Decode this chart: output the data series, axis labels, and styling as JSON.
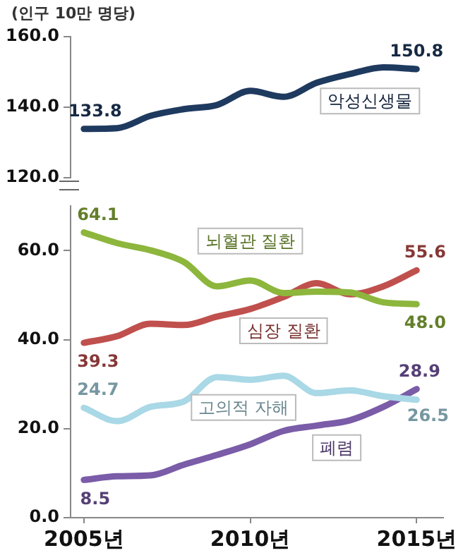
{
  "chart_data": [
    {
      "type": "line",
      "ylabel": "(인구 10만 명당)",
      "categories": [
        null,
        null,
        null,
        null,
        null,
        null,
        null,
        null,
        null,
        null,
        null
      ],
      "ylim": [
        120,
        160
      ],
      "yticks": [
        {
          "value": 120,
          "label": "120.0"
        },
        {
          "value": 140,
          "label": "140.0"
        },
        {
          "value": 160,
          "label": "160.0"
        }
      ],
      "tick_labels": "y",
      "grid": false,
      "marker": "none",
      "series": [
        {
          "name": "악성신생물",
          "color": "#1f3a5f",
          "values": [
            133.8,
            134.0,
            137.5,
            139.4,
            140.6,
            144.6,
            142.9,
            146.9,
            149.4,
            151.3,
            150.8
          ],
          "value_labels": [
            "133.8",
            null,
            null,
            null,
            null,
            null,
            null,
            null,
            null,
            null,
            "150.8"
          ]
        }
      ]
    },
    {
      "type": "line",
      "x": [
        2005,
        2006,
        2007,
        2008,
        2009,
        2010,
        2011,
        2012,
        2013,
        2014,
        2015
      ],
      "xlim": [
        2004.6,
        2015.8
      ],
      "xticks": [
        {
          "value": 2005,
          "label": "2005년"
        },
        {
          "value": 2010,
          "label": "2010년"
        },
        {
          "value": 2015,
          "label": "2015년"
        }
      ],
      "ylim": [
        0,
        70
      ],
      "yticks": [
        {
          "value": 0,
          "label": "0.0"
        },
        {
          "value": 20,
          "label": "20.0"
        },
        {
          "value": 40,
          "label": "40.0"
        },
        {
          "value": 60,
          "label": "60.0"
        }
      ],
      "grid": false,
      "marker": "none",
      "series": [
        {
          "name": "뇌혈관 질환",
          "color": "#8db63c",
          "values": [
            64.1,
            61.7,
            60.1,
            57.5,
            52.0,
            53.3,
            50.5,
            50.8,
            50.6,
            48.4,
            48.0
          ],
          "value_labels": [
            "64.1",
            null,
            null,
            null,
            null,
            null,
            null,
            null,
            null,
            null,
            "48.0"
          ]
        },
        {
          "name": "심장 질환",
          "color": "#c0504d",
          "values": [
            39.3,
            40.8,
            43.6,
            43.3,
            45.2,
            46.9,
            49.6,
            52.7,
            50.2,
            52.0,
            55.6
          ],
          "value_labels": [
            "39.3",
            null,
            null,
            null,
            null,
            null,
            null,
            null,
            null,
            null,
            "55.6"
          ]
        },
        {
          "name": "고의적 자해",
          "color": "#a9d8e6",
          "values": [
            24.7,
            21.7,
            24.9,
            26.1,
            31.6,
            31.0,
            31.9,
            28.0,
            28.6,
            27.3,
            26.5
          ],
          "value_labels": [
            "24.7",
            null,
            null,
            null,
            null,
            null,
            null,
            null,
            null,
            null,
            "26.5"
          ]
        },
        {
          "name": "폐렴",
          "color": "#7a5ca8",
          "values": [
            8.5,
            9.3,
            9.5,
            11.9,
            14.1,
            16.5,
            19.5,
            20.7,
            21.9,
            24.9,
            28.9
          ],
          "value_labels": [
            "8.5",
            null,
            null,
            null,
            null,
            null,
            null,
            null,
            null,
            null,
            "28.9"
          ]
        }
      ]
    }
  ]
}
